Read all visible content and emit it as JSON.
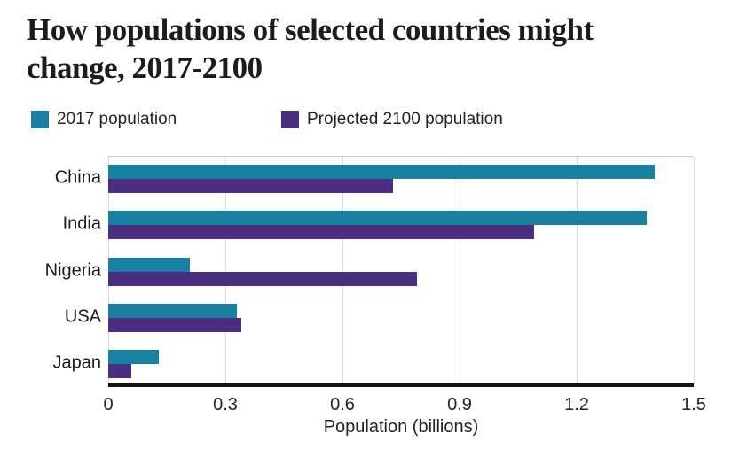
{
  "title_lines": [
    "How populations of selected countries might",
    "change, 2017-2100"
  ],
  "legend": [
    {
      "label": "2017 population",
      "color": "#1880a1"
    },
    {
      "label": "Projected 2100 population",
      "color": "#4b2d82"
    }
  ],
  "chart_data": {
    "type": "bar",
    "orientation": "horizontal",
    "title": "How populations of selected countries might change, 2017-2100",
    "categories": [
      "China",
      "India",
      "Nigeria",
      "USA",
      "Japan"
    ],
    "series": [
      {
        "name": "2017 population",
        "color": "#1880a1",
        "values": [
          1.4,
          1.38,
          0.21,
          0.33,
          0.13
        ]
      },
      {
        "name": "Projected 2100 population",
        "color": "#4b2d82",
        "values": [
          0.73,
          1.09,
          0.79,
          0.34,
          0.06
        ]
      }
    ],
    "xlabel": "Population (billions)",
    "xlim": [
      0,
      1.5
    ],
    "xticks": [
      0,
      0.3,
      0.6,
      0.9,
      1.2,
      1.5
    ],
    "xtick_labels": [
      "0",
      "0.3",
      "0.6",
      "0.9",
      "1.2",
      "1.5"
    ],
    "grid": true,
    "legend_position": "top"
  },
  "colors": {
    "bar_2017": "#1880a1",
    "bar_2100": "#4b2d82",
    "axis_line": "#141414",
    "gridline": "#d9d9d9",
    "text": "#1a1a1a"
  }
}
